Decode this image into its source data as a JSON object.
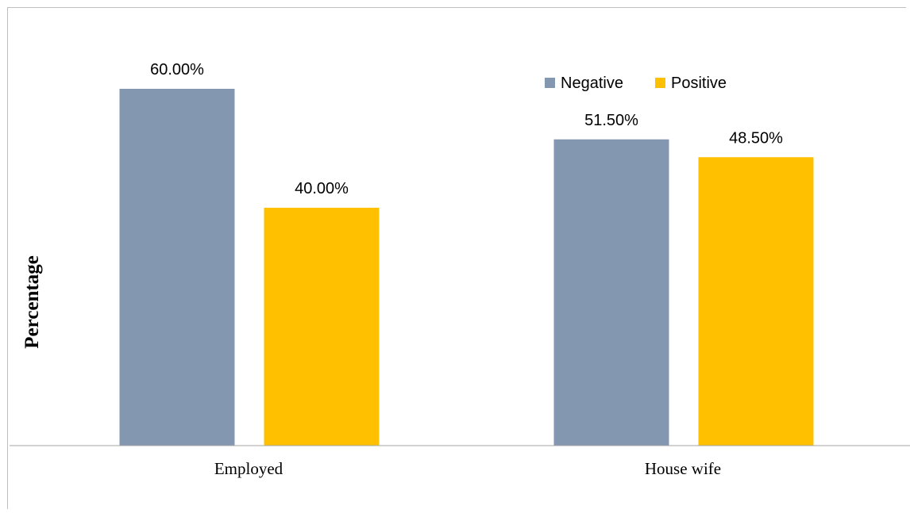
{
  "chart_data": {
    "type": "bar",
    "categories": [
      "Employed",
      "House wife"
    ],
    "series": [
      {
        "name": "Negative",
        "values": [
          60.0,
          51.5
        ],
        "labels": [
          "60.00%",
          "51.50%"
        ]
      },
      {
        "name": "Positive",
        "values": [
          40.0,
          48.5
        ],
        "labels": [
          "40.00%",
          "48.50%"
        ]
      }
    ],
    "colors": {
      "Negative": "#8497b0",
      "Positive": "#ffc000"
    },
    "title": "",
    "xlabel": "",
    "ylabel": "Percentage",
    "ylim": [
      0,
      70
    ],
    "grid": false,
    "legend_position": "top-right"
  }
}
